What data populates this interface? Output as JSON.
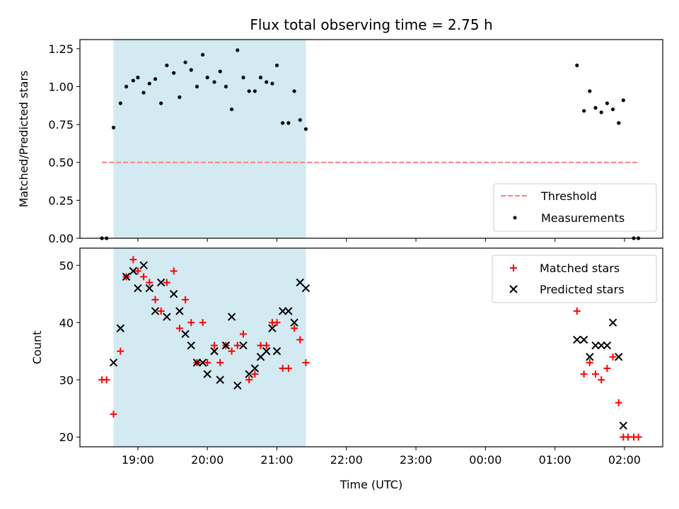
{
  "chart_data": [
    {
      "type": "scatter",
      "title": "Flux total observing time = 2.75 h",
      "xlabel": "",
      "ylabel": "Matched/Predicted stars",
      "xlim": [
        "18:10",
        "02:33"
      ],
      "ylim": [
        0,
        1.31
      ],
      "yticks": [
        "0.00",
        "0.25",
        "0.50",
        "0.75",
        "1.00",
        "1.25"
      ],
      "shaded_interval": [
        "18:39",
        "21:25"
      ],
      "shaded_color": "#add8e6",
      "grid": false,
      "legend_position": "lower-right",
      "series": [
        {
          "name": "Measurements",
          "marker": "dot",
          "color": "#000000",
          "points": [
            [
              "18:29",
              0.0
            ],
            [
              "18:33",
              0.0
            ],
            [
              "18:39",
              0.73
            ],
            [
              "18:45",
              0.89
            ],
            [
              "18:50",
              1.0
            ],
            [
              "18:56",
              1.04
            ],
            [
              "19:00",
              1.06
            ],
            [
              "19:05",
              0.96
            ],
            [
              "19:10",
              1.02
            ],
            [
              "19:15",
              1.05
            ],
            [
              "19:20",
              0.89
            ],
            [
              "19:25",
              1.14
            ],
            [
              "19:31",
              1.09
            ],
            [
              "19:36",
              0.93
            ],
            [
              "19:41",
              1.16
            ],
            [
              "19:46",
              1.11
            ],
            [
              "19:51",
              1.0
            ],
            [
              "19:56",
              1.21
            ],
            [
              "20:00",
              1.06
            ],
            [
              "20:06",
              1.03
            ],
            [
              "20:11",
              1.1
            ],
            [
              "20:16",
              1.0
            ],
            [
              "20:21",
              0.85
            ],
            [
              "20:26",
              1.24
            ],
            [
              "20:31",
              1.06
            ],
            [
              "20:36",
              0.97
            ],
            [
              "20:41",
              0.97
            ],
            [
              "20:46",
              1.06
            ],
            [
              "20:51",
              1.03
            ],
            [
              "20:56",
              1.02
            ],
            [
              "21:00",
              1.14
            ],
            [
              "21:05",
              0.76
            ],
            [
              "21:10",
              0.76
            ],
            [
              "21:15",
              0.97
            ],
            [
              "21:20",
              0.78
            ],
            [
              "21:25",
              0.72
            ],
            [
              "01:19",
              1.14
            ],
            [
              "01:25",
              0.84
            ],
            [
              "01:30",
              0.97
            ],
            [
              "01:35",
              0.86
            ],
            [
              "01:40",
              0.83
            ],
            [
              "01:45",
              0.89
            ],
            [
              "01:50",
              0.85
            ],
            [
              "01:55",
              0.76
            ],
            [
              "01:59",
              0.91
            ],
            [
              "02:08",
              0.0
            ],
            [
              "02:12",
              0.0
            ]
          ]
        },
        {
          "name": "Threshold",
          "type": "line",
          "style": "dashed",
          "color": "#ff7f7f",
          "points": [
            [
              "18:29",
              0.5
            ],
            [
              "02:12",
              0.5
            ]
          ]
        }
      ],
      "legend": [
        "Threshold",
        "Measurements"
      ]
    },
    {
      "type": "scatter",
      "title": "",
      "xlabel": "Time (UTC)",
      "ylabel": "Count",
      "xlim": [
        "18:10",
        "02:33"
      ],
      "ylim": [
        18.3,
        53.0
      ],
      "yticks": [
        "20",
        "30",
        "40",
        "50"
      ],
      "xticks": [
        "19:00",
        "20:00",
        "21:00",
        "22:00",
        "23:00",
        "00:00",
        "01:00",
        "02:00"
      ],
      "shaded_interval": [
        "18:39",
        "21:25"
      ],
      "shaded_color": "#add8e6",
      "grid": false,
      "legend_position": "top-right",
      "series": [
        {
          "name": "Matched stars",
          "marker": "plus",
          "color": "#ff0000",
          "points": [
            [
              "18:29",
              30
            ],
            [
              "18:33",
              30
            ],
            [
              "18:39",
              24
            ],
            [
              "18:45",
              35
            ],
            [
              "18:50",
              48
            ],
            [
              "18:56",
              51
            ],
            [
              "19:00",
              49
            ],
            [
              "19:05",
              48
            ],
            [
              "19:10",
              47
            ],
            [
              "19:15",
              44
            ],
            [
              "19:20",
              42
            ],
            [
              "19:25",
              47
            ],
            [
              "19:31",
              49
            ],
            [
              "19:36",
              39
            ],
            [
              "19:41",
              44
            ],
            [
              "19:46",
              40
            ],
            [
              "19:51",
              33
            ],
            [
              "19:56",
              40
            ],
            [
              "20:00",
              33
            ],
            [
              "20:06",
              36
            ],
            [
              "20:11",
              33
            ],
            [
              "20:16",
              36
            ],
            [
              "20:21",
              35
            ],
            [
              "20:26",
              36
            ],
            [
              "20:31",
              38
            ],
            [
              "20:36",
              30
            ],
            [
              "20:41",
              31
            ],
            [
              "20:46",
              36
            ],
            [
              "20:51",
              36
            ],
            [
              "20:56",
              40
            ],
            [
              "21:00",
              40
            ],
            [
              "21:05",
              32
            ],
            [
              "21:10",
              32
            ],
            [
              "21:15",
              39
            ],
            [
              "21:20",
              37
            ],
            [
              "21:25",
              33
            ],
            [
              "01:19",
              42
            ],
            [
              "01:25",
              31
            ],
            [
              "01:30",
              33
            ],
            [
              "01:35",
              31
            ],
            [
              "01:40",
              30
            ],
            [
              "01:45",
              32
            ],
            [
              "01:50",
              34
            ],
            [
              "01:55",
              26
            ],
            [
              "01:59",
              20
            ],
            [
              "02:03",
              20
            ],
            [
              "02:08",
              20
            ],
            [
              "02:12",
              20
            ]
          ]
        },
        {
          "name": "Predicted stars",
          "marker": "x",
          "color": "#000000",
          "points": [
            [
              "18:39",
              33
            ],
            [
              "18:45",
              39
            ],
            [
              "18:50",
              48
            ],
            [
              "18:56",
              49
            ],
            [
              "19:00",
              46
            ],
            [
              "19:05",
              50
            ],
            [
              "19:10",
              46
            ],
            [
              "19:15",
              42
            ],
            [
              "19:20",
              47
            ],
            [
              "19:25",
              41
            ],
            [
              "19:31",
              45
            ],
            [
              "19:36",
              42
            ],
            [
              "19:41",
              38
            ],
            [
              "19:46",
              36
            ],
            [
              "19:51",
              33
            ],
            [
              "19:56",
              33
            ],
            [
              "20:00",
              31
            ],
            [
              "20:06",
              35
            ],
            [
              "20:11",
              30
            ],
            [
              "20:16",
              36
            ],
            [
              "20:21",
              41
            ],
            [
              "20:26",
              29
            ],
            [
              "20:31",
              36
            ],
            [
              "20:36",
              31
            ],
            [
              "20:41",
              32
            ],
            [
              "20:46",
              34
            ],
            [
              "20:51",
              35
            ],
            [
              "20:56",
              39
            ],
            [
              "21:00",
              35
            ],
            [
              "21:05",
              42
            ],
            [
              "21:10",
              42
            ],
            [
              "21:15",
              40
            ],
            [
              "21:20",
              47
            ],
            [
              "21:25",
              46
            ],
            [
              "01:19",
              37
            ],
            [
              "01:25",
              37
            ],
            [
              "01:30",
              34
            ],
            [
              "01:35",
              36
            ],
            [
              "01:40",
              36
            ],
            [
              "01:45",
              36
            ],
            [
              "01:50",
              40
            ],
            [
              "01:55",
              34
            ],
            [
              "01:59",
              22
            ]
          ]
        }
      ],
      "legend": [
        "Matched stars",
        "Predicted stars"
      ]
    }
  ]
}
